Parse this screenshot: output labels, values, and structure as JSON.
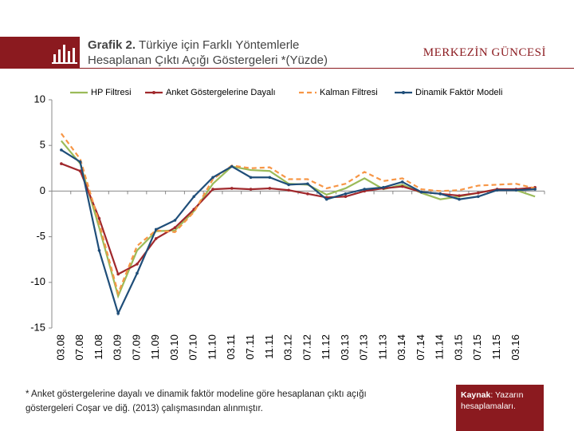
{
  "header": {
    "label": "Grafik 2.",
    "title_lines": [
      "Türkiye için Farklı Yöntemlerle",
      "Hesaplanan Çıktı Açığı Göstergeleri *(Yüzde)"
    ],
    "brand": "MERKEZİN GÜNCESİ"
  },
  "chart_data": {
    "type": "line",
    "categories": [
      "03.08",
      "07.08",
      "11.08",
      "03.09",
      "07.09",
      "11.09",
      "03.10",
      "07.10",
      "11.10",
      "03.11",
      "07.11",
      "11.11",
      "03.12",
      "07.12",
      "11.12",
      "03.13",
      "07.13",
      "11.13",
      "03.14",
      "07.14",
      "11.14",
      "03.15",
      "07.15",
      "11.15",
      "03.16",
      null
    ],
    "series": [
      {
        "name": "HP Filtresi",
        "color": "#9bbb59",
        "values": [
          5.5,
          3,
          -4,
          -11.5,
          -6.5,
          -4.4,
          -4.3,
          -2.2,
          0.8,
          2.7,
          2.3,
          2.2,
          0.8,
          0.7,
          -0.4,
          0.3,
          1.4,
          0.2,
          0.7,
          -0.2,
          -0.9,
          -0.6,
          -0.2,
          0.2,
          0.1,
          -0.6
        ]
      },
      {
        "name": "Anket Göstergelerine Dayalı",
        "color": "#a0282c",
        "marker": "dot",
        "values": [
          3,
          2.2,
          -3,
          -9.1,
          -8,
          -5.2,
          -4,
          -2,
          0.2,
          0.3,
          0.2,
          0.3,
          0.1,
          -0.3,
          -0.7,
          -0.6,
          0,
          0.3,
          0.5,
          -0.1,
          -0.3,
          -0.5,
          -0.2,
          0.2,
          0.2,
          0.4
        ]
      },
      {
        "name": "Kalman Filtresi",
        "color": "#f79646",
        "style": "dashed",
        "values": [
          6.3,
          3.5,
          -3.5,
          -11.2,
          -6,
          -4.3,
          -4.5,
          -2.3,
          1.3,
          2.8,
          2.5,
          2.6,
          1.3,
          1.3,
          0.3,
          0.8,
          2.1,
          1.1,
          1.4,
          0.2,
          0,
          0.1,
          0.6,
          0.7,
          0.8,
          0.3
        ]
      },
      {
        "name": "Dinamik Faktör Modeli",
        "color": "#1f4e79",
        "marker": "dot",
        "values": [
          4.5,
          3.2,
          -6.5,
          -13.4,
          -9,
          -4.2,
          -3.2,
          -0.6,
          1.5,
          2.7,
          1.5,
          1.5,
          0.7,
          0.8,
          -0.9,
          -0.3,
          0.2,
          0.4,
          1,
          -0.1,
          -0.3,
          -0.9,
          -0.6,
          0.1,
          0.1,
          0.2
        ]
      }
    ],
    "ylim": [
      -15,
      10
    ],
    "yticks": [
      -15,
      -10,
      -5,
      0,
      5,
      10
    ],
    "legend": "top",
    "grid": false
  },
  "footnote": [
    "* Anket göstergelerine dayalı ve dinamik faktör modeline göre hesaplanan çıktı açığı",
    "göstergeleri Coşar ve diğ. (2013) çalışmasından alınmıştır."
  ],
  "source": {
    "label": "Kaynak",
    "text_lines": [
      ": Yazarın",
      "hesaplamaları."
    ]
  }
}
